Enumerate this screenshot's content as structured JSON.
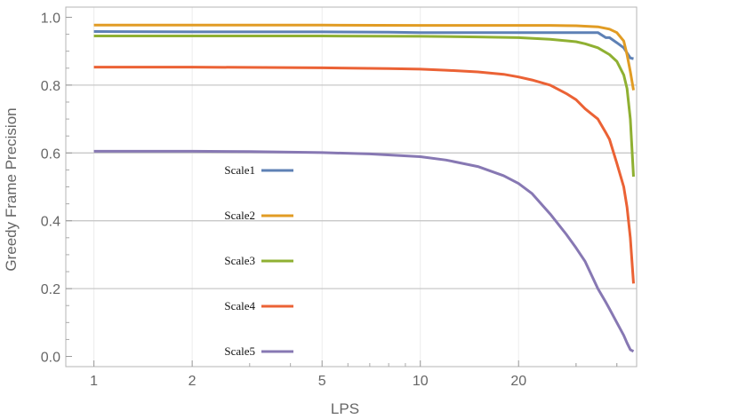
{
  "chart_data": {
    "type": "line",
    "title": "",
    "xlabel": "LPS",
    "ylabel": "Greedy Frame Precision",
    "xscale": "log",
    "xlim": [
      0.82,
      46
    ],
    "ylim": [
      -0.03,
      1.03
    ],
    "x_ticks": [
      1,
      2,
      5,
      10,
      20
    ],
    "x_tick_labels": [
      "1",
      "2",
      "5",
      "10",
      "20"
    ],
    "y_ticks": [
      0.0,
      0.2,
      0.4,
      0.6,
      0.8,
      1.0
    ],
    "y_tick_labels": [
      "0.0",
      "0.2",
      "0.4",
      "0.6",
      "0.8",
      "1.0"
    ],
    "grid": "horizontal major lines, faint vertical",
    "legend_position": "center-left, inside plot",
    "series": [
      {
        "name": "Scale1",
        "color": "#5E81B5",
        "x": [
          1,
          2,
          5,
          8,
          10,
          15,
          20,
          25,
          30,
          35,
          37,
          38,
          40,
          42,
          44,
          45
        ],
        "y": [
          0.958,
          0.957,
          0.957,
          0.956,
          0.955,
          0.955,
          0.955,
          0.955,
          0.955,
          0.955,
          0.94,
          0.94,
          0.925,
          0.91,
          0.88,
          0.878
        ]
      },
      {
        "name": "Scale2",
        "color": "#E19C24",
        "x": [
          1,
          2,
          5,
          10,
          15,
          20,
          25,
          30,
          35,
          38,
          40,
          42,
          43,
          44,
          45
        ],
        "y": [
          0.977,
          0.977,
          0.977,
          0.976,
          0.976,
          0.976,
          0.976,
          0.975,
          0.972,
          0.965,
          0.955,
          0.93,
          0.89,
          0.84,
          0.785
        ]
      },
      {
        "name": "Scale3",
        "color": "#8FB032",
        "x": [
          1,
          2,
          5,
          10,
          15,
          20,
          25,
          30,
          32,
          35,
          38,
          40,
          42,
          43,
          44,
          45
        ],
        "y": [
          0.945,
          0.945,
          0.945,
          0.944,
          0.942,
          0.94,
          0.935,
          0.928,
          0.922,
          0.91,
          0.89,
          0.87,
          0.83,
          0.79,
          0.7,
          0.53
        ]
      },
      {
        "name": "Scale4",
        "color": "#EB6235",
        "x": [
          1,
          2,
          5,
          8,
          10,
          12,
          15,
          18,
          20,
          22,
          25,
          28,
          30,
          32,
          35,
          37,
          38,
          40,
          42,
          43,
          44,
          45
        ],
        "y": [
          0.853,
          0.853,
          0.851,
          0.849,
          0.847,
          0.844,
          0.839,
          0.832,
          0.824,
          0.815,
          0.8,
          0.775,
          0.757,
          0.73,
          0.7,
          0.66,
          0.64,
          0.57,
          0.5,
          0.44,
          0.35,
          0.215
        ]
      },
      {
        "name": "Scale5",
        "color": "#8778B3",
        "x": [
          1,
          2,
          3,
          5,
          7,
          10,
          12,
          15,
          18,
          20,
          22,
          25,
          28,
          30,
          32,
          35,
          37,
          38,
          40,
          42,
          43,
          44,
          45
        ],
        "y": [
          0.605,
          0.605,
          0.604,
          0.601,
          0.597,
          0.589,
          0.579,
          0.56,
          0.533,
          0.51,
          0.48,
          0.42,
          0.36,
          0.32,
          0.28,
          0.2,
          0.16,
          0.14,
          0.1,
          0.062,
          0.04,
          0.02,
          0.015
        ]
      }
    ]
  }
}
